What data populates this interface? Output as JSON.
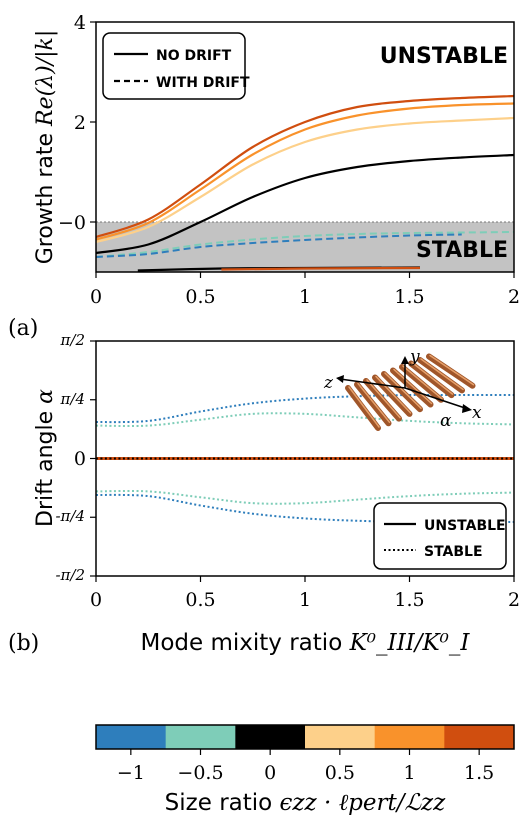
{
  "colors": {
    "neg1": "#2E7EBC",
    "neg05": "#7ECDB8",
    "zero": "#000000",
    "pos05": "#FDD08A",
    "pos1": "#F9922B",
    "pos15": "#D04E0F",
    "stable_band": "#c3c3c3"
  },
  "chart_data": [
    {
      "type": "line",
      "panel_label": "(a)",
      "ylabel_text": "Growth rate ",
      "ylabel_math": "Re(λ)/|k|",
      "xlim": [
        0,
        2
      ],
      "ylim": [
        -1,
        4
      ],
      "x_ticks": [
        "0",
        "0.5",
        "1",
        "1.5",
        "2"
      ],
      "y_ticks": [
        "−0",
        "2",
        "4"
      ],
      "region_unstable": "UNSTABLE",
      "region_stable": "STABLE",
      "legend": {
        "position": "top-left",
        "entries": [
          "NO DRIFT",
          "WITH DRIFT"
        ]
      },
      "series": [
        {
          "ratio": 1.5,
          "style": "solid",
          "x": [
            0,
            0.25,
            0.5,
            0.75,
            1,
            1.25,
            1.5,
            1.75,
            2
          ],
          "y": [
            -0.3,
            0.05,
            0.75,
            1.5,
            2.0,
            2.3,
            2.42,
            2.48,
            2.52
          ]
        },
        {
          "ratio": 1,
          "style": "solid",
          "x": [
            0,
            0.25,
            0.5,
            0.75,
            1,
            1.25,
            1.5,
            1.75,
            2
          ],
          "y": [
            -0.35,
            -0.02,
            0.65,
            1.35,
            1.85,
            2.13,
            2.27,
            2.34,
            2.37
          ]
        },
        {
          "ratio": 0.5,
          "style": "solid",
          "x": [
            0,
            0.25,
            0.5,
            0.75,
            1,
            1.25,
            1.5,
            1.75,
            2
          ],
          "y": [
            -0.4,
            -0.1,
            0.5,
            1.15,
            1.6,
            1.85,
            1.97,
            2.03,
            2.08
          ]
        },
        {
          "ratio": 0,
          "style": "solid",
          "x": [
            0,
            0.25,
            0.5,
            0.75,
            1,
            1.25,
            1.5,
            1.75,
            2
          ],
          "y": [
            -0.62,
            -0.45,
            0.0,
            0.5,
            0.88,
            1.1,
            1.22,
            1.29,
            1.34
          ]
        },
        {
          "ratio": -0.5,
          "style": "dashed",
          "x": [
            0,
            0.25,
            0.5,
            0.75,
            1,
            1.25,
            1.5,
            1.75,
            2
          ],
          "y": [
            -0.7,
            -0.6,
            -0.45,
            -0.35,
            -0.28,
            -0.24,
            -0.22,
            -0.21,
            -0.2
          ]
        },
        {
          "ratio": -1,
          "style": "dashed",
          "x": [
            0,
            0.25,
            0.5,
            0.75,
            1,
            1.25,
            1.5,
            1.75
          ],
          "y": [
            -0.7,
            -0.64,
            -0.5,
            -0.42,
            -0.36,
            -0.31,
            -0.27,
            -0.25
          ]
        },
        {
          "ratio": 0,
          "style": "solid",
          "x": [
            0.2,
            0.6,
            1.0,
            1.55
          ],
          "y": [
            -0.97,
            -0.93,
            -0.92,
            -0.91
          ]
        },
        {
          "ratio": 1.5,
          "style": "solid",
          "x": [
            0.6,
            1.0,
            1.55
          ],
          "y": [
            -0.95,
            -0.93,
            -0.92
          ]
        }
      ]
    },
    {
      "type": "line",
      "panel_label": "(b)",
      "ylabel_text": "Drift angle ",
      "ylabel_math": "α",
      "xlabel_text": "Mode mixity ratio ",
      "xlabel_math": "K⁰_III/K⁰_I",
      "xlim": [
        0,
        2
      ],
      "ylim_pi_fraction": [
        -0.5,
        0.5
      ],
      "x_ticks": [
        "0",
        "0.5",
        "1",
        "1.5",
        "2"
      ],
      "y_ticks": [
        "π/2",
        "π/4",
        "0",
        "-π/4",
        "-π/2"
      ],
      "legend": {
        "position": "bottom-right",
        "entries": [
          "UNSTABLE",
          "STABLE"
        ]
      },
      "inset_axes": [
        "y",
        "z",
        "x",
        "α"
      ],
      "series": [
        {
          "ratio": -1,
          "style": "dotted",
          "x": [
            0,
            0.25,
            0.5,
            0.75,
            1,
            1.25,
            1.5,
            1.75,
            2
          ],
          "y_pi_fraction": [
            0.155,
            0.16,
            0.2,
            0.235,
            0.255,
            0.265,
            0.27,
            0.27,
            0.27
          ]
        },
        {
          "ratio": -0.5,
          "style": "dotted",
          "x": [
            0,
            0.25,
            0.5,
            0.75,
            1,
            1.25,
            1.5,
            1.75,
            2
          ],
          "y_pi_fraction": [
            0.14,
            0.14,
            0.165,
            0.19,
            0.19,
            0.175,
            0.16,
            0.15,
            0.145
          ]
        },
        {
          "ratio": -1,
          "style": "dotted",
          "x": [
            0,
            0.25,
            0.5,
            0.75,
            1,
            1.25,
            1.5,
            1.75,
            2
          ],
          "y_pi_fraction": [
            -0.155,
            -0.16,
            -0.2,
            -0.235,
            -0.255,
            -0.265,
            -0.27,
            -0.27,
            -0.27
          ]
        },
        {
          "ratio": -0.5,
          "style": "dotted",
          "x": [
            0,
            0.25,
            0.5,
            0.75,
            1,
            1.25,
            1.5,
            1.75,
            2
          ],
          "y_pi_fraction": [
            -0.14,
            -0.14,
            -0.165,
            -0.19,
            -0.19,
            -0.175,
            -0.16,
            -0.15,
            -0.145
          ]
        },
        {
          "ratio": 1.5,
          "style": "solid",
          "x": [
            0,
            2
          ],
          "y_pi_fraction": [
            0,
            0
          ]
        },
        {
          "ratio": 0,
          "style": "dotted",
          "x": [
            0,
            2
          ],
          "y_pi_fraction": [
            0,
            0
          ]
        }
      ]
    }
  ],
  "colorbar": {
    "label_text": "Size ratio ",
    "label_math": "ϵzz · ℓpert/ℒzz",
    "ticks": [
      "−1",
      "−0.5",
      "0",
      "0.5",
      "1",
      "1.5"
    ],
    "bins": [
      "neg1",
      "neg05",
      "zero",
      "pos05",
      "pos1",
      "pos15"
    ]
  }
}
